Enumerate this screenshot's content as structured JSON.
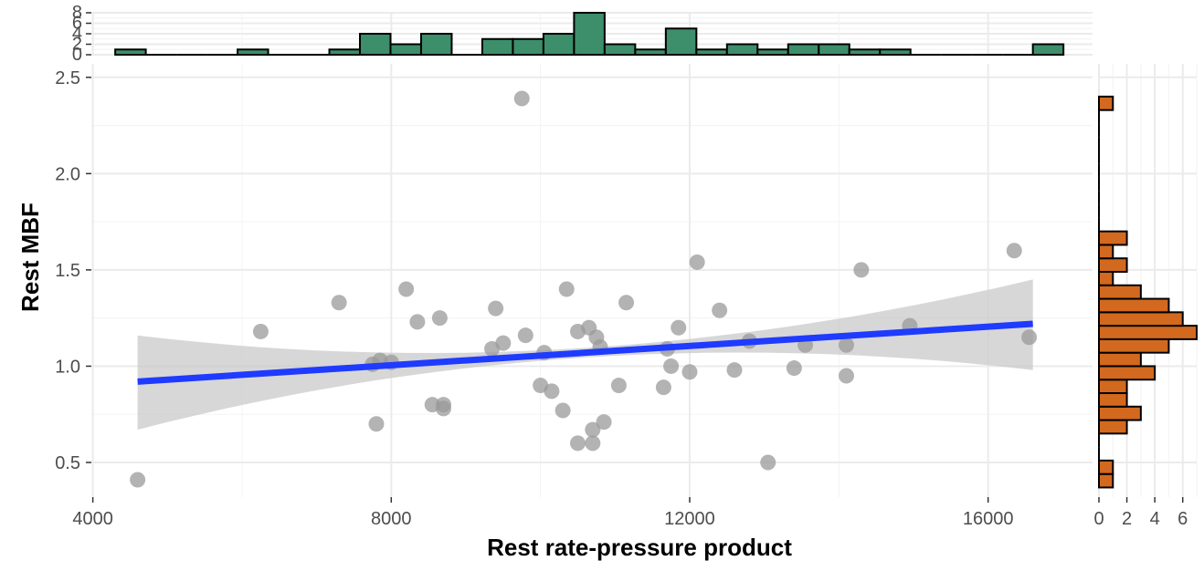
{
  "chart_data": [
    {
      "name": "main-scatter",
      "type": "scatter",
      "xlabel": "Rest rate-pressure product",
      "ylabel": "Rest MBF",
      "xlim": [
        3980,
        17400
      ],
      "ylim": [
        0.32,
        2.57
      ],
      "x_ticks": [
        4000,
        8000,
        12000,
        16000
      ],
      "y_ticks": [
        0.5,
        1.0,
        1.5,
        2.0,
        2.5
      ],
      "x_tick_labels": [
        "4000",
        "8000",
        "12000",
        "16000"
      ],
      "y_tick_labels": [
        "0.5",
        "1.0",
        "1.5",
        "2.0",
        "2.5"
      ],
      "grid": true,
      "point_color": "#999999",
      "points": [
        [
          4600,
          0.41
        ],
        [
          6250,
          1.18
        ],
        [
          7300,
          1.33
        ],
        [
          7750,
          1.01
        ],
        [
          7800,
          0.7
        ],
        [
          7850,
          1.03
        ],
        [
          8000,
          1.02
        ],
        [
          8200,
          1.4
        ],
        [
          8350,
          1.23
        ],
        [
          8550,
          0.8
        ],
        [
          8650,
          1.25
        ],
        [
          8700,
          0.8
        ],
        [
          8700,
          0.78
        ],
        [
          9350,
          1.09
        ],
        [
          9400,
          1.3
        ],
        [
          9500,
          1.12
        ],
        [
          9750,
          2.39
        ],
        [
          9800,
          1.16
        ],
        [
          10000,
          0.9
        ],
        [
          10050,
          1.07
        ],
        [
          10150,
          0.87
        ],
        [
          10300,
          0.77
        ],
        [
          10350,
          1.4
        ],
        [
          10500,
          1.18
        ],
        [
          10500,
          0.6
        ],
        [
          10650,
          1.2
        ],
        [
          10700,
          0.67
        ],
        [
          10700,
          0.6
        ],
        [
          10750,
          1.15
        ],
        [
          10800,
          1.1
        ],
        [
          10850,
          0.71
        ],
        [
          11050,
          0.9
        ],
        [
          11150,
          1.33
        ],
        [
          11650,
          0.89
        ],
        [
          11700,
          1.09
        ],
        [
          11750,
          1.0
        ],
        [
          11850,
          1.2
        ],
        [
          12000,
          0.97
        ],
        [
          12100,
          1.54
        ],
        [
          12400,
          1.29
        ],
        [
          12600,
          0.98
        ],
        [
          12800,
          1.13
        ],
        [
          13050,
          0.5
        ],
        [
          13400,
          0.99
        ],
        [
          13550,
          1.11
        ],
        [
          14100,
          1.11
        ],
        [
          14100,
          0.95
        ],
        [
          14300,
          1.5
        ],
        [
          14950,
          1.21
        ],
        [
          16350,
          1.6
        ],
        [
          16550,
          1.15
        ]
      ],
      "regression": {
        "color": "#1f3bff",
        "x": [
          4600,
          16600
        ],
        "y": [
          0.92,
          1.22
        ],
        "ci_color": "#c9c9c9",
        "ci_lower": [
          0.67,
          0.98
        ],
        "ci_upper": [
          1.16,
          1.45
        ],
        "ci_mid_half_width": 0.025
      }
    },
    {
      "name": "x-marginal-histogram",
      "type": "bar",
      "fill": "#3d8e6a",
      "ylim": [
        0,
        8
      ],
      "y_ticks": [
        0,
        2,
        4,
        6,
        8
      ],
      "y_tick_labels": [
        "0",
        "2",
        "4",
        "6",
        "8"
      ],
      "bin_edges": [
        4300,
        4710,
        5120,
        5530,
        5940,
        6350,
        6760,
        7170,
        7580,
        7990,
        8400,
        8810,
        9220,
        9630,
        10040,
        10450,
        10860,
        11270,
        11680,
        12090,
        12500,
        12910,
        13320,
        13730,
        14140,
        14550,
        14960,
        15370,
        15780,
        16190,
        16600,
        17010
      ],
      "counts": [
        1,
        0,
        0,
        0,
        1,
        0,
        0,
        1,
        4,
        2,
        4,
        0,
        3,
        3,
        4,
        8,
        2,
        1,
        5,
        1,
        2,
        1,
        2,
        2,
        1,
        1,
        0,
        0,
        0,
        0,
        2
      ]
    },
    {
      "name": "y-marginal-histogram",
      "type": "bar",
      "orientation": "horizontal",
      "fill": "#d2691e",
      "xlim": [
        0,
        7
      ],
      "x_ticks": [
        0,
        2,
        4,
        6
      ],
      "x_tick_labels": [
        "0",
        "2",
        "4",
        "6"
      ],
      "bin_edges": [
        0.37,
        0.44,
        0.51,
        0.58,
        0.65,
        0.72,
        0.79,
        0.86,
        0.93,
        1.0,
        1.07,
        1.14,
        1.21,
        1.28,
        1.35,
        1.42,
        1.49,
        1.56,
        1.63,
        1.7,
        1.77,
        1.84,
        1.91,
        1.98,
        2.05,
        2.12,
        2.19,
        2.26,
        2.33,
        2.4
      ],
      "counts": [
        1,
        1,
        0,
        0,
        2,
        3,
        2,
        2,
        4,
        3,
        5,
        7,
        6,
        5,
        3,
        1,
        2,
        1,
        2,
        0,
        0,
        0,
        0,
        0,
        0,
        0,
        0,
        0,
        1
      ]
    }
  ]
}
